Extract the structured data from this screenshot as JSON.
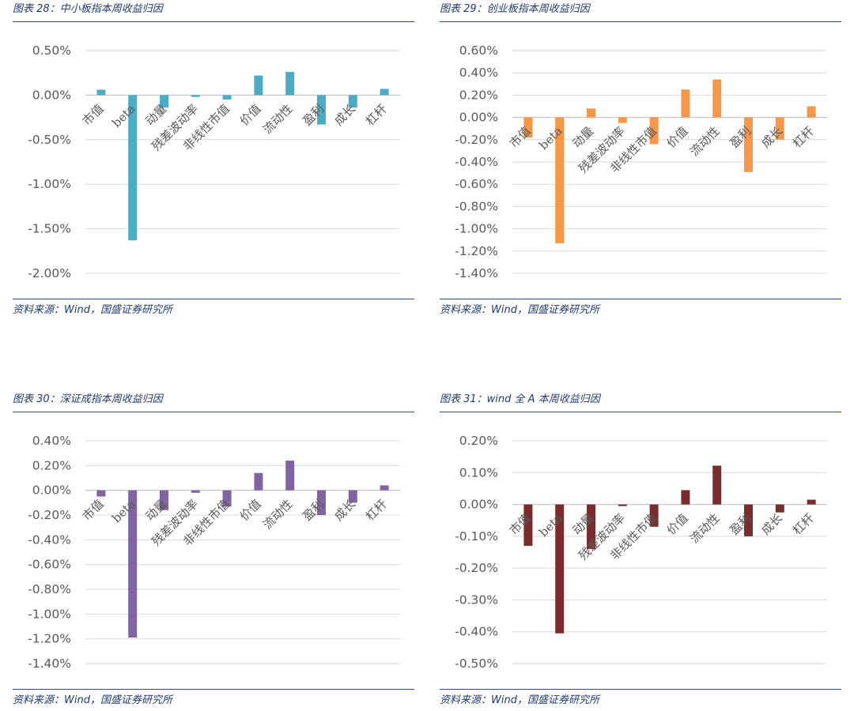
{
  "source_text": "资料来源：Wind，国盛证券研究所",
  "categories": [
    "市值",
    "beta",
    "动量",
    "残差波动率",
    "非线性市值",
    "价值",
    "流动性",
    "盈利",
    "成长",
    "杠杆"
  ],
  "chart_data": [
    {
      "type": "bar",
      "title": "图表 28：中小板指本周收益归因",
      "categories": [
        "市值",
        "beta",
        "动量",
        "残差波动率",
        "非线性市值",
        "价值",
        "流动性",
        "盈利",
        "成长",
        "杠杆"
      ],
      "values": [
        0.06,
        -1.63,
        -0.14,
        -0.02,
        -0.05,
        0.22,
        0.26,
        -0.33,
        -0.14,
        0.07
      ],
      "ylim": [
        -2.0,
        0.5
      ],
      "ytick_labels": [
        "0.50%",
        "0.00%",
        "-0.50%",
        "-1.00%",
        "-1.50%",
        "-2.00%"
      ],
      "color": "#4bacc6",
      "grid": true,
      "xlabel": "",
      "ylabel": ""
    },
    {
      "type": "bar",
      "title": "图表 29：创业板指本周收益归因",
      "categories": [
        "市值",
        "beta",
        "动量",
        "残差波动率",
        "非线性市值",
        "价值",
        "流动性",
        "盈利",
        "成长",
        "杠杆"
      ],
      "values": [
        -0.18,
        -1.13,
        0.08,
        -0.05,
        -0.24,
        0.25,
        0.34,
        -0.49,
        -0.2,
        0.1
      ],
      "ylim": [
        -1.4,
        0.6
      ],
      "ytick_labels": [
        "0.60%",
        "0.40%",
        "0.20%",
        "0.00%",
        "-0.20%",
        "-0.40%",
        "-0.60%",
        "-0.80%",
        "-1.00%",
        "-1.20%",
        "-1.40%"
      ],
      "color": "#f79646",
      "grid": true,
      "xlabel": "",
      "ylabel": ""
    },
    {
      "type": "bar",
      "title": "图表 30：深证成指本周收益归因",
      "categories": [
        "市值",
        "beta",
        "动量",
        "残差波动率",
        "非线性市值",
        "价值",
        "流动性",
        "盈利",
        "成长",
        "杠杆"
      ],
      "values": [
        -0.05,
        -1.19,
        -0.16,
        -0.02,
        -0.13,
        0.14,
        0.24,
        -0.2,
        -0.1,
        0.04
      ],
      "ylim": [
        -1.4,
        0.4
      ],
      "ytick_labels": [
        "0.40%",
        "0.20%",
        "0.00%",
        "-0.20%",
        "-0.40%",
        "-0.60%",
        "-0.80%",
        "-1.00%",
        "-1.20%",
        "-1.40%"
      ],
      "color": "#8064a2",
      "grid": true,
      "xlabel": "",
      "ylabel": ""
    },
    {
      "type": "bar",
      "title": "图表 31：wind 全 A 本周收益归因",
      "categories": [
        "市值",
        "beta",
        "动量",
        "残差波动率",
        "非线性市值",
        "价值",
        "流动性",
        "盈利",
        "成长",
        "杠杆"
      ],
      "values": [
        -0.13,
        -0.405,
        -0.14,
        -0.005,
        -0.07,
        0.045,
        0.122,
        -0.1,
        -0.025,
        0.015
      ],
      "ylim": [
        -0.5,
        0.2
      ],
      "ytick_labels": [
        "0.20%",
        "0.10%",
        "0.00%",
        "-0.10%",
        "-0.20%",
        "-0.30%",
        "-0.40%",
        "-0.50%"
      ],
      "color": "#7b2c2c",
      "grid": true,
      "xlabel": "",
      "ylabel": ""
    }
  ]
}
